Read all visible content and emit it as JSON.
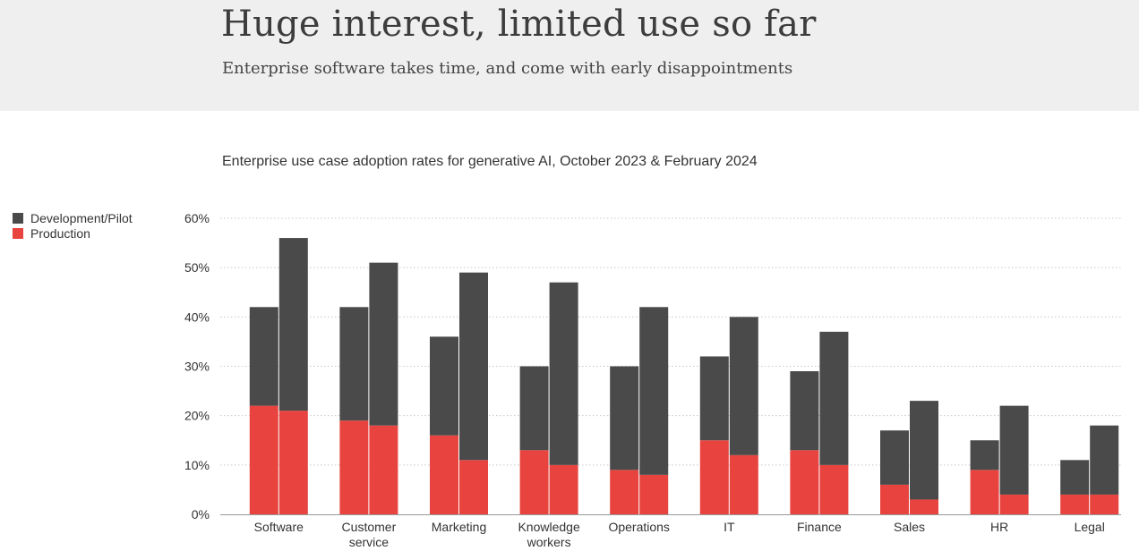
{
  "header": {
    "title": "Huge interest, limited use so far",
    "subtitle": "Enterprise software takes time, and come with early disappointments"
  },
  "colors": {
    "development": "#4a4a4a",
    "production": "#e8433e",
    "grid": "#c8c8c8",
    "banner": "#efefef"
  },
  "legend": [
    {
      "label": "Development/Pilot",
      "color_key": "development"
    },
    {
      "label": "Production",
      "color_key": "production"
    }
  ],
  "chart_data": {
    "type": "bar",
    "stacked": true,
    "title": "Enterprise use case adoption rates for generative AI, October 2023 & February 2024",
    "xlabel": "",
    "ylabel": "",
    "ylim": [
      0,
      60
    ],
    "yticks": [
      "0%",
      "10%",
      "20%",
      "30%",
      "40%",
      "50%",
      "60%"
    ],
    "grid": true,
    "legend_position": "left",
    "categories": [
      [
        "Software"
      ],
      [
        "Customer",
        "service"
      ],
      [
        "Marketing"
      ],
      [
        "Knowledge",
        "workers"
      ],
      [
        "Operations"
      ],
      [
        "IT"
      ],
      [
        "Finance"
      ],
      [
        "Sales"
      ],
      [
        "HR"
      ],
      [
        "Legal"
      ]
    ],
    "periods": [
      "October 2023",
      "February 2024"
    ],
    "series": [
      {
        "name": "Production",
        "color_key": "production",
        "oct_2023": [
          22,
          19,
          16,
          13,
          9,
          15,
          13,
          6,
          9,
          4
        ],
        "feb_2024": [
          21,
          18,
          11,
          10,
          8,
          12,
          10,
          3,
          4,
          4
        ]
      },
      {
        "name": "Development/Pilot",
        "color_key": "development",
        "oct_2023": [
          20,
          23,
          20,
          17,
          21,
          17,
          16,
          11,
          6,
          7
        ],
        "feb_2024": [
          35,
          33,
          38,
          37,
          34,
          28,
          27,
          20,
          18,
          14
        ]
      }
    ]
  }
}
